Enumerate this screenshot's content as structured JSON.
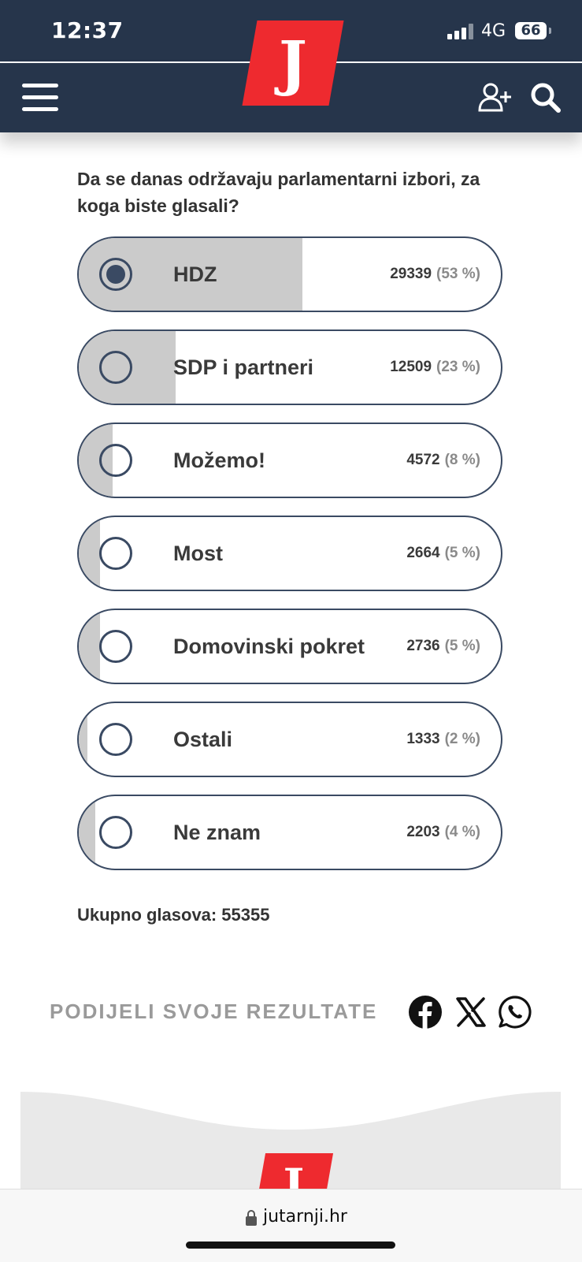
{
  "status_bar": {
    "time": "12:37",
    "network": "4G",
    "battery": "66"
  },
  "header": {
    "logo_letter": "J"
  },
  "poll": {
    "question": "Da se danas održavaju parlamentarni izbori, za koga biste glasali?",
    "options": [
      {
        "label": "HDZ",
        "votes": "29339",
        "percent": "(53 %)",
        "share": 0.53,
        "selected": true
      },
      {
        "label": "SDP i partneri",
        "votes": "12509",
        "percent": "(23 %)",
        "share": 0.23,
        "selected": false
      },
      {
        "label": "Možemo!",
        "votes": "4572",
        "percent": "(8 %)",
        "share": 0.08,
        "selected": false
      },
      {
        "label": "Most",
        "votes": "2664",
        "percent": "(5 %)",
        "share": 0.05,
        "selected": false
      },
      {
        "label": "Domovinski pokret",
        "votes": "2736",
        "percent": "(5 %)",
        "share": 0.05,
        "selected": false
      },
      {
        "label": "Ostali",
        "votes": "1333",
        "percent": "(2 %)",
        "share": 0.02,
        "selected": false
      },
      {
        "label": "Ne znam",
        "votes": "2203",
        "percent": "(4 %)",
        "share": 0.04,
        "selected": false
      }
    ],
    "total_label": "Ukupno glasova:",
    "total_value": "55355"
  },
  "share": {
    "title": "PODIJELI SVOJE REZULTATE",
    "icons": [
      "facebook-icon",
      "x-icon",
      "whatsapp-icon"
    ]
  },
  "footer": {
    "logo_letter": "J"
  },
  "browser": {
    "url": "jutarnji.hr"
  },
  "colors": {
    "nav": "#26354b",
    "brand_red": "#ee2a2f",
    "fill": "#cbcbcb",
    "border": "#3a4a63"
  }
}
